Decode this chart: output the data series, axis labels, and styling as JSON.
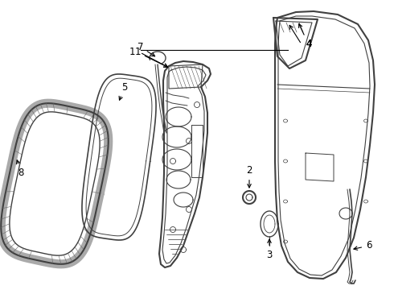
{
  "bg_color": "#ffffff",
  "line_color": "#404040",
  "label_color": "#000000",
  "figsize": [
    4.9,
    3.6
  ],
  "dpi": 100
}
